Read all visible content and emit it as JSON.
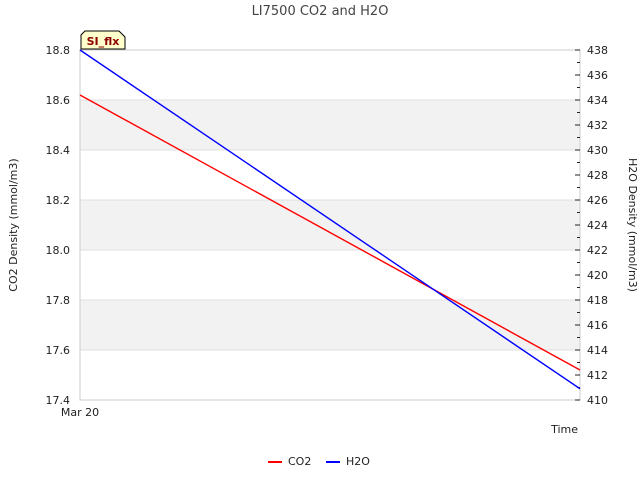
{
  "chart_data": {
    "type": "line",
    "title": "LI7500 CO2 and H2O",
    "xlabel": "Time",
    "x_tick_label": "Mar 20",
    "badge": "SI_flx",
    "y_left": {
      "label": "CO2 Density (mmol/m3)",
      "range": [
        17.4,
        18.8
      ],
      "ticks": [
        "17.4",
        "17.6",
        "17.8",
        "18.0",
        "18.2",
        "18.4",
        "18.6",
        "18.8"
      ],
      "tick_values": [
        17.4,
        17.6,
        17.8,
        18.0,
        18.2,
        18.4,
        18.6,
        18.8
      ]
    },
    "y_right": {
      "label": "H2O Density (mmol/m3)",
      "range": [
        410,
        438
      ],
      "ticks": [
        "410",
        "412",
        "414",
        "416",
        "418",
        "420",
        "422",
        "424",
        "426",
        "428",
        "430",
        "432",
        "434",
        "436",
        "438"
      ],
      "tick_values": [
        410,
        412,
        414,
        416,
        418,
        420,
        422,
        424,
        426,
        428,
        430,
        432,
        434,
        436,
        438
      ]
    },
    "grid": true,
    "x": [
      0,
      1
    ],
    "series": [
      {
        "name": "CO2",
        "axis": "left",
        "color": "#ff0000",
        "values": [
          18.62,
          17.52
        ]
      },
      {
        "name": "H2O",
        "axis": "right",
        "color": "#0000ff",
        "values": [
          438.0,
          410.9
        ]
      }
    ],
    "legend_position": "bottom-center"
  }
}
